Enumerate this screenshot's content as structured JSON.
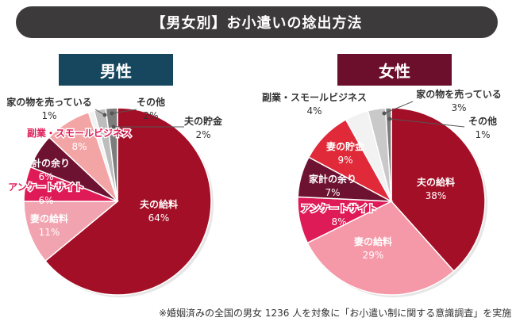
{
  "title": "【男女別】お小遣いの捻出方法",
  "footnote": "※婚姻済みの全国の男女 1236 人を対象に「お小遣い制に関する意識調査」を実施",
  "chart_data": [
    {
      "type": "pie",
      "title": "男性",
      "unit": "%",
      "slices": [
        {
          "label": "夫の給料",
          "value": 64,
          "color": "#a30f26"
        },
        {
          "label": "妻の給料",
          "value": 11,
          "color": "#f2a3b0"
        },
        {
          "label": "アンケートサイト",
          "value": 6,
          "color": "#de1b57"
        },
        {
          "label": "家計の余り",
          "value": 6,
          "color": "#6e1232"
        },
        {
          "label": "副業・スモールビジネス",
          "value": 8,
          "color": "#f3a5a5"
        },
        {
          "label": "家の物を売っている",
          "value": 1,
          "color": "#f2f2f2"
        },
        {
          "label": "その他",
          "value": 2,
          "color": "#bdbdbd"
        },
        {
          "label": "夫の貯金",
          "value": 2,
          "color": "#7d7d7d"
        }
      ]
    },
    {
      "type": "pie",
      "title": "女性",
      "unit": "%",
      "slices": [
        {
          "label": "夫の給料",
          "value": 38,
          "color": "#a30f26"
        },
        {
          "label": "妻の給料",
          "value": 29,
          "color": "#f598a8"
        },
        {
          "label": "アンケートサイト",
          "value": 8,
          "color": "#de1b57"
        },
        {
          "label": "家計の余り",
          "value": 7,
          "color": "#6e1232"
        },
        {
          "label": "妻の貯金",
          "value": 9,
          "color": "#e02a3a"
        },
        {
          "label": "副業・スモールビジネス",
          "value": 4,
          "color": "#f2f2f2"
        },
        {
          "label": "家の物を売っている",
          "value": 3,
          "color": "#c9c9c9"
        },
        {
          "label": "その他",
          "value": 1,
          "color": "#7d7d7d"
        }
      ]
    }
  ]
}
